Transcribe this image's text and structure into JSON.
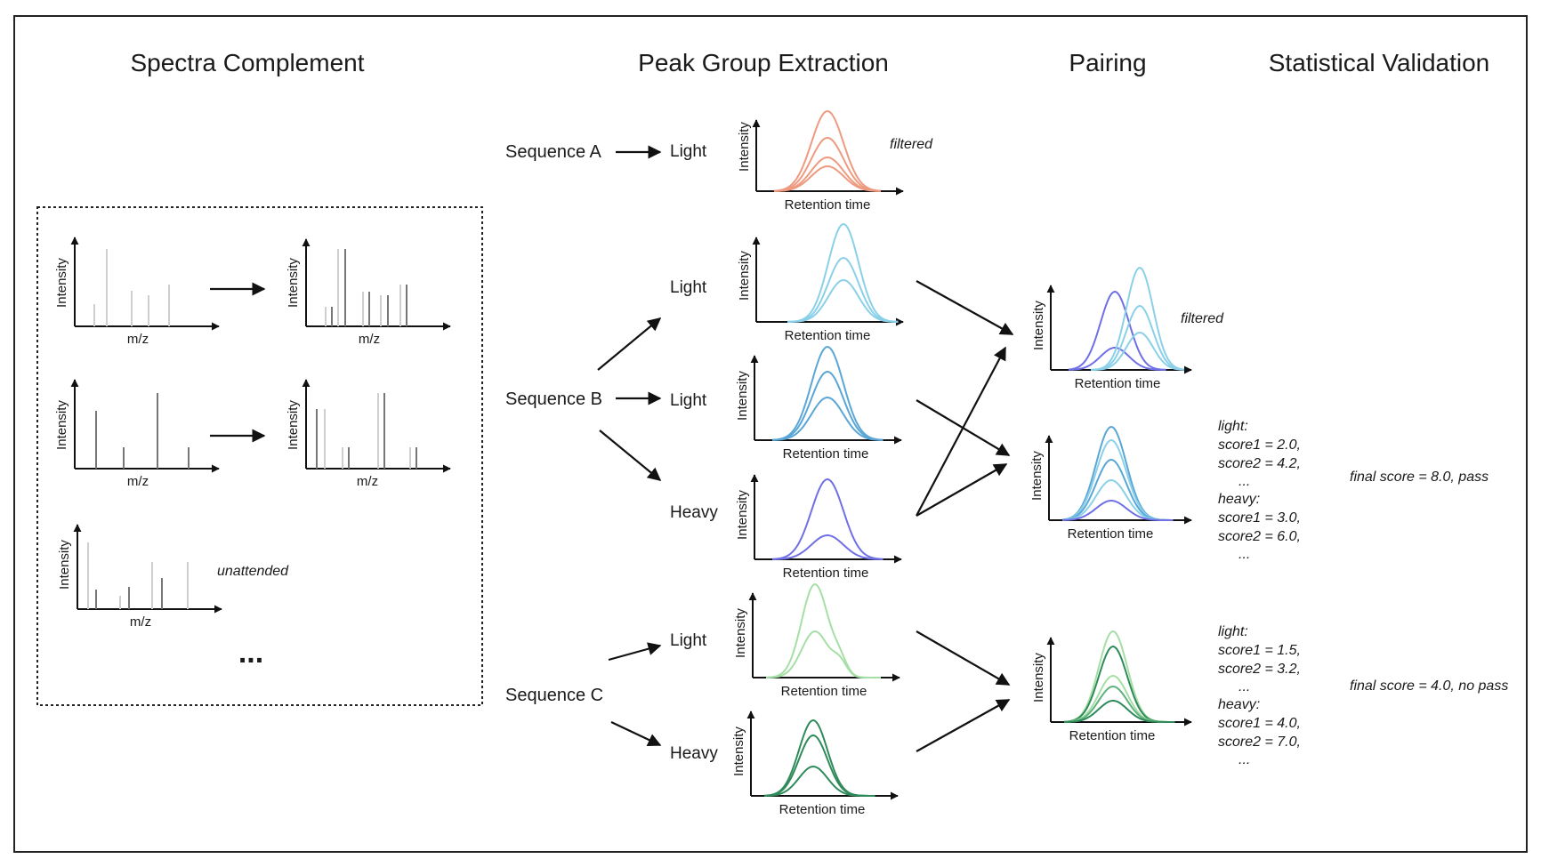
{
  "headers": {
    "spectra_complement": "Spectra Complement",
    "peak_group_extraction": "Peak Group Extraction",
    "pairing": "Pairing",
    "statistical_validation": "Statistical Validation"
  },
  "sequences": {
    "a": "Sequence A",
    "b": "Sequence B",
    "c": "Sequence C"
  },
  "channels": {
    "light": "Light",
    "heavy": "Heavy"
  },
  "axes": {
    "intensity": "Intensity",
    "mz": "m/z",
    "retention_time": "Retention time"
  },
  "notes": {
    "filtered": "filtered",
    "unattended": "unattended",
    "ellipsis": "..."
  },
  "scores_b": [
    "light:",
    "score1 = 2.0,",
    "score2 = 4.2,",
    "...",
    "heavy:",
    "score1 = 3.0,",
    "score2 = 6.0,",
    "..."
  ],
  "scores_c": [
    "light:",
    "score1 = 1.5,",
    "score2 = 3.2,",
    "...",
    "heavy:",
    "score1 = 4.0,",
    "score2 = 7.0,",
    "..."
  ],
  "final_b": "final score = 8.0, pass",
  "final_c": "final score = 4.0, no pass",
  "colors": {
    "orange": "#ee9a80",
    "blue_light": "#8ad0e8",
    "blue_mid": "#5aa6d6",
    "blue_dark": "#3f7fc0",
    "violet": "#6f6fe6",
    "green_light": "#a6dfa6",
    "green_mid": "#5fb27b",
    "green_dark": "#2f8a5a"
  }
}
